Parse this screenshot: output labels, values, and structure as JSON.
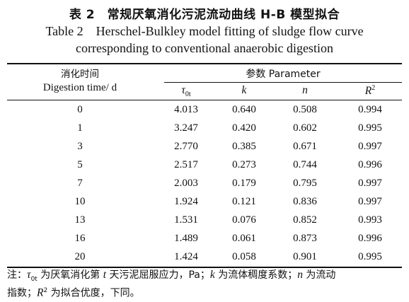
{
  "title_cn": "表 2　常规厌氧消化污泥流动曲线 H-B 模型拟合",
  "title_en_line1": "Table 2　Herschel-Bulkley model fitting of sludge flow curve",
  "title_en_line2": "corresponding to conventional anaerobic digestion",
  "header": {
    "col0_cn": "消化时间",
    "col0_en": "Digestion time/ d",
    "params_label": "参数  Parameter",
    "tau_symbol": "τ",
    "tau_sub": "0t",
    "k": "k",
    "n": "n",
    "r_symbol": "R",
    "r_sup": "2"
  },
  "rows": [
    {
      "day": "0",
      "tau": "4.013",
      "k": "0.640",
      "n": "0.508",
      "r2": "0.994"
    },
    {
      "day": "1",
      "tau": "3.247",
      "k": "0.420",
      "n": "0.602",
      "r2": "0.995"
    },
    {
      "day": "3",
      "tau": "2.770",
      "k": "0.385",
      "n": "0.671",
      "r2": "0.997"
    },
    {
      "day": "5",
      "tau": "2.517",
      "k": "0.273",
      "n": "0.744",
      "r2": "0.996"
    },
    {
      "day": "7",
      "tau": "2.003",
      "k": "0.179",
      "n": "0.795",
      "r2": "0.997"
    },
    {
      "day": "10",
      "tau": "1.924",
      "k": "0.121",
      "n": "0.836",
      "r2": "0.997"
    },
    {
      "day": "13",
      "tau": "1.531",
      "k": "0.076",
      "n": "0.852",
      "r2": "0.993"
    },
    {
      "day": "16",
      "tau": "1.489",
      "k": "0.061",
      "n": "0.873",
      "r2": "0.996"
    },
    {
      "day": "20",
      "tau": "1.424",
      "k": "0.058",
      "n": "0.901",
      "r2": "0.995"
    }
  ],
  "note": {
    "prefix": "注：",
    "tau": "τ",
    "tau_sub": "0t",
    "part1": " 为厌氧消化第 ",
    "t": "t",
    "part2": " 天污泥屈服应力，Pa；",
    "k": "k",
    "part3": " 为流体稠度系数；",
    "n": "n",
    "part4": " 为流动",
    "part5": "指数；",
    "r": "R",
    "r_sup": "2",
    "part6": " 为拟合优度，下同。"
  }
}
